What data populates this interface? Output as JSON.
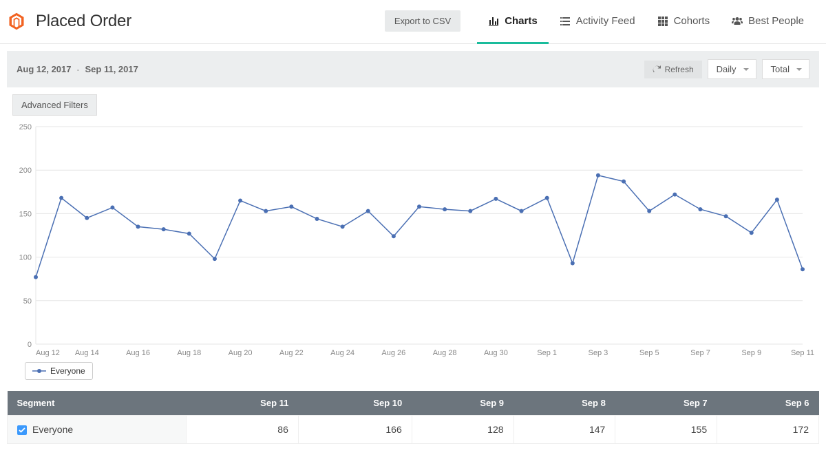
{
  "header": {
    "title": "Placed Order",
    "logo_color": "#f26322",
    "export_label": "Export to CSV",
    "tabs": [
      {
        "label": "Charts",
        "icon": "bar-chart",
        "active": true
      },
      {
        "label": "Activity Feed",
        "icon": "list",
        "active": false
      },
      {
        "label": "Cohorts",
        "icon": "grid",
        "active": false
      },
      {
        "label": "Best People",
        "icon": "people",
        "active": false
      }
    ],
    "accent_color": "#1abc9c"
  },
  "controls": {
    "date_start": "Aug 12, 2017",
    "date_end": "Sep 11, 2017",
    "refresh_label": "Refresh",
    "granularity": "Daily",
    "aggregation": "Total",
    "advanced_filters_label": "Advanced Filters"
  },
  "chart": {
    "type": "line",
    "ylim": [
      0,
      250
    ],
    "ytick_step": 50,
    "x_labels": [
      "Aug 12",
      "Aug 14",
      "Aug 16",
      "Aug 18",
      "Aug 20",
      "Aug 22",
      "Aug 24",
      "Aug 26",
      "Aug 28",
      "Aug 30",
      "Sep 1",
      "Sep 3",
      "Sep 5",
      "Sep 7",
      "Sep 9",
      "Sep 11"
    ],
    "x_dates": [
      "Aug 12",
      "Aug 13",
      "Aug 14",
      "Aug 15",
      "Aug 16",
      "Aug 17",
      "Aug 18",
      "Aug 19",
      "Aug 20",
      "Aug 21",
      "Aug 22",
      "Aug 23",
      "Aug 24",
      "Aug 25",
      "Aug 26",
      "Aug 27",
      "Aug 28",
      "Aug 29",
      "Aug 30",
      "Aug 31",
      "Sep 1",
      "Sep 2",
      "Sep 3",
      "Sep 4",
      "Sep 5",
      "Sep 6",
      "Sep 7",
      "Sep 8",
      "Sep 9",
      "Sep 10",
      "Sep 11"
    ],
    "series": {
      "name": "Everyone",
      "color": "#4a6fb3",
      "marker_radius": 3,
      "values": [
        77,
        168,
        145,
        157,
        135,
        132,
        127,
        98,
        165,
        153,
        158,
        144,
        135,
        153,
        124,
        158,
        155,
        153,
        167,
        153,
        168,
        93,
        194,
        187,
        153,
        172,
        155,
        147,
        128,
        166,
        86
      ]
    },
    "background_color": "#ffffff",
    "grid_color": "#e6e6e6",
    "axis_color": "#999999",
    "axis_fontsize": 11,
    "axis_text_color": "#888888",
    "legend_label": "Everyone"
  },
  "table": {
    "columns": [
      "Segment",
      "Sep 11",
      "Sep 10",
      "Sep 9",
      "Sep 8",
      "Sep 7",
      "Sep 6"
    ],
    "row": {
      "segment": "Everyone",
      "checked": true,
      "checkbox_color": "#3b99fc",
      "values": [
        86,
        166,
        128,
        147,
        155,
        172
      ]
    },
    "header_bg": "#6c757d",
    "header_text": "#ffffff"
  }
}
